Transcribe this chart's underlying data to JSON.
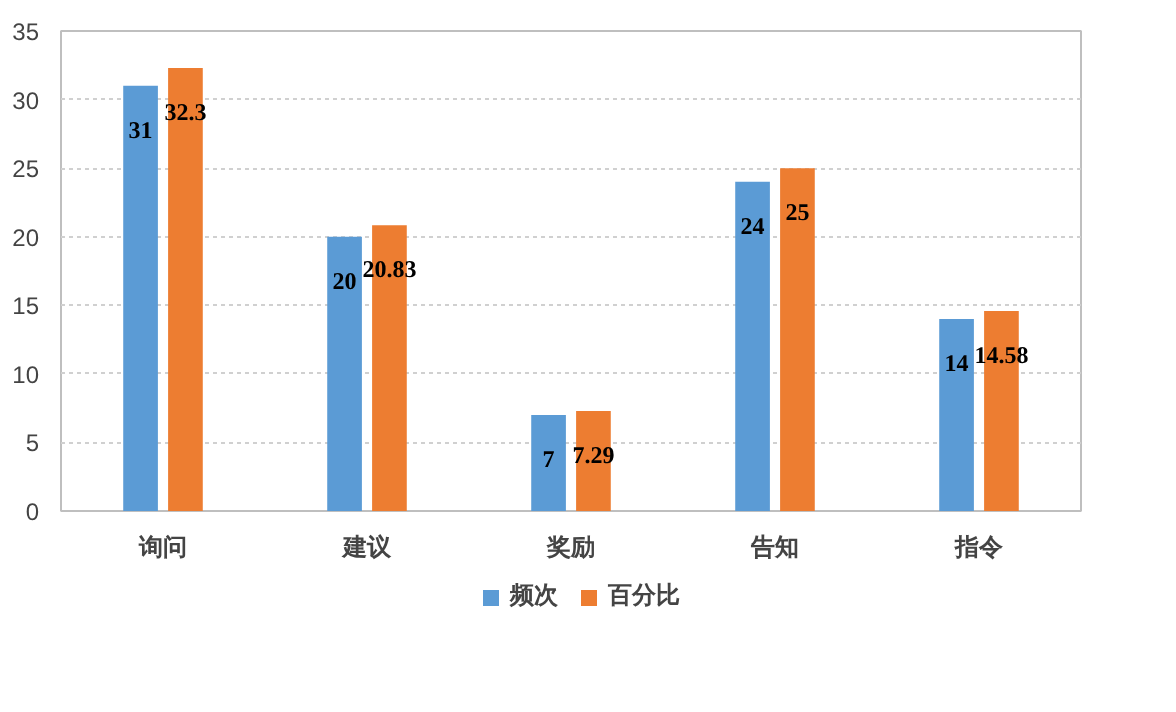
{
  "chart_data": {
    "type": "bar",
    "categories": [
      "询问",
      "建议",
      "奖励",
      "告知",
      "指令"
    ],
    "series": [
      {
        "name": "频次",
        "color": "#5b9bd5",
        "values": [
          31,
          20,
          7,
          24,
          14
        ]
      },
      {
        "name": "百分比",
        "color": "#ed7d31",
        "values": [
          32.3,
          20.83,
          7.29,
          25,
          14.58
        ]
      }
    ],
    "ylim": [
      0,
      35
    ],
    "yticks": [
      0,
      5,
      10,
      15,
      20,
      25,
      30,
      35
    ],
    "grid": "y",
    "legend": "bottom",
    "data_labels": true
  }
}
